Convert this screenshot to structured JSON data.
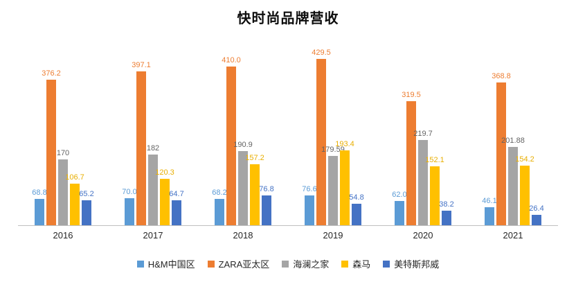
{
  "title": "快时尚品牌营收",
  "background": "#FFFFFF",
  "axis_line_color": "#BFBFBF",
  "chart_data": {
    "type": "bar",
    "title": "快时尚品牌营收",
    "xlabel": "",
    "ylabel": "",
    "ylim": [
      0,
      460
    ],
    "grid": false,
    "legend_position": "bottom",
    "categories": [
      "2016",
      "2017",
      "2018",
      "2019",
      "2020",
      "2021"
    ],
    "series": [
      {
        "name": "H&M中国区",
        "color": "#5B9BD5",
        "label_color": "#5B9BD5",
        "values": [
          68.8,
          70.0,
          68.2,
          76.6,
          62.0,
          46.1
        ],
        "labels": [
          "68.8",
          "70.0",
          "68.2",
          "76.6",
          "62.0",
          "46.1"
        ]
      },
      {
        "name": "ZARA亚太区",
        "color": "#ED7D31",
        "label_color": "#ED7D31",
        "values": [
          376.2,
          397.1,
          410.0,
          429.5,
          319.5,
          368.8
        ],
        "labels": [
          "376.2",
          "397.1",
          "410.0",
          "429.5",
          "319.5",
          "368.8"
        ]
      },
      {
        "name": "海澜之家",
        "color": "#A5A5A5",
        "label_color": "#636363",
        "values": [
          170,
          182,
          190.9,
          179.59,
          219.7,
          201.88
        ],
        "labels": [
          "170",
          "182",
          "190.9",
          "179.59",
          "219.7",
          "201.88"
        ]
      },
      {
        "name": "森马",
        "color": "#FFC000",
        "label_color": "#E8AE00",
        "values": [
          106.7,
          120.3,
          157.2,
          193.4,
          152.1,
          154.2
        ],
        "labels": [
          "106.7",
          "120.3",
          "157.2",
          "193.4",
          "152.1",
          "154.2"
        ]
      },
      {
        "name": "美特斯邦威",
        "color": "#4472C4",
        "label_color": "#4472C4",
        "values": [
          65.2,
          64.7,
          76.8,
          54.8,
          38.2,
          26.4
        ],
        "labels": [
          "65.2",
          "64.7",
          "76.8",
          "54.8",
          "38.2",
          "26.4"
        ]
      }
    ]
  }
}
